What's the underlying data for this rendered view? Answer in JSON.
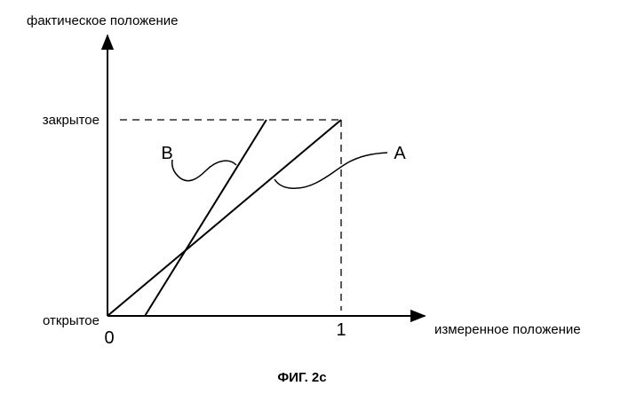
{
  "diagram": {
    "y_axis_label": "фактическое положение",
    "x_axis_label": "измеренное положение",
    "y_tick_top": "закрытое",
    "y_tick_bottom": "открытое",
    "x_tick_origin": "0",
    "x_tick_one": "1",
    "line_a_label": "A",
    "line_b_label": "B",
    "caption": "ФИГ. 2с"
  },
  "chart_data": {
    "type": "line",
    "xlabel": "измеренное положение",
    "ylabel": "фактическое положение",
    "xlim": [
      0,
      1.15
    ],
    "ylim": [
      0,
      1.05
    ],
    "series": [
      {
        "name": "A",
        "x": [
          0,
          1
        ],
        "y": [
          0,
          1
        ]
      },
      {
        "name": "B",
        "x": [
          0.16,
          0.68
        ],
        "y": [
          0,
          1
        ]
      }
    ]
  }
}
